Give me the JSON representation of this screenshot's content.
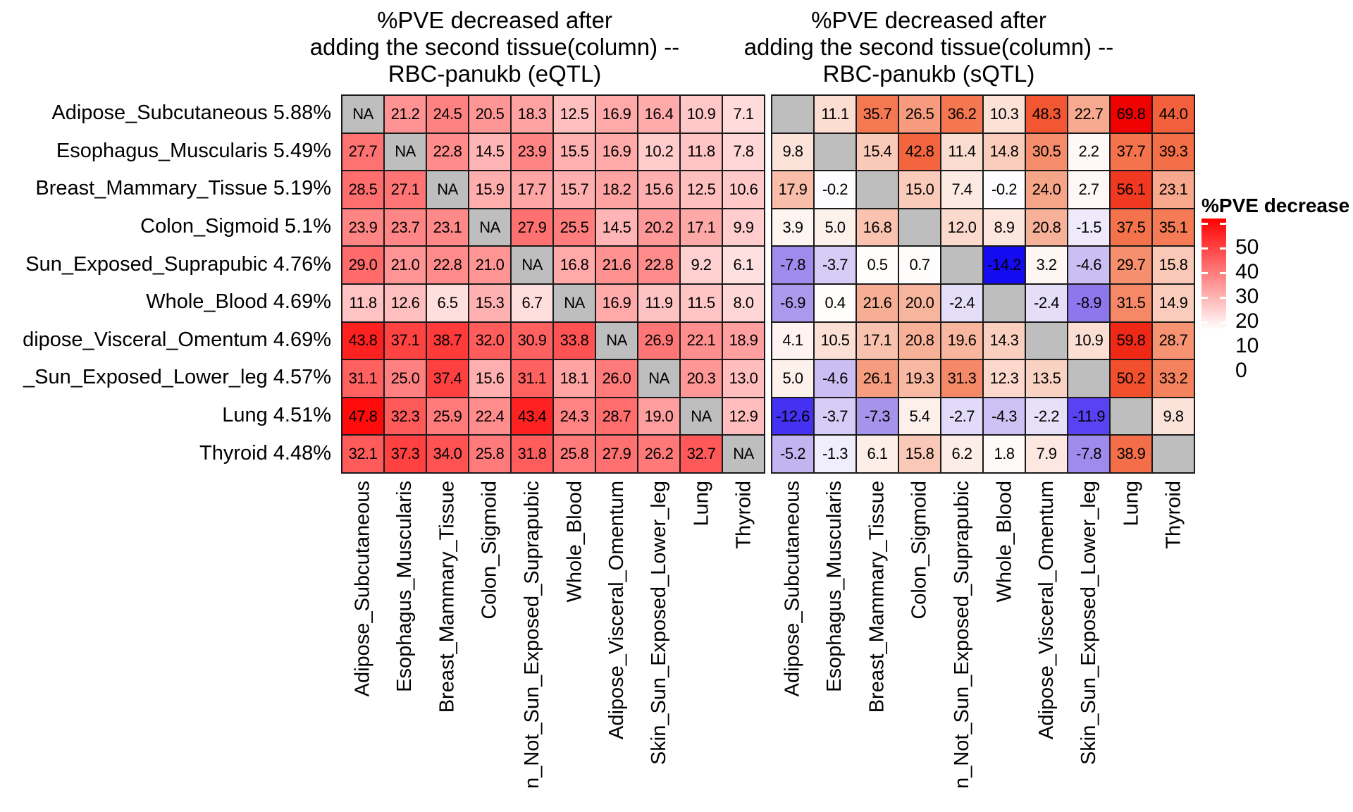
{
  "titles": {
    "left": "%PVE decreased after\nadding the second tissue(column) --\nRBC-panukb (eQTL)",
    "right": "%PVE decreased after\nadding the second tissue(column) --\nRBC-panukb (sQTL)"
  },
  "legend": {
    "title": "%PVE decrease",
    "tick_labels": [
      "50",
      "40",
      "30",
      "20",
      "10",
      "0"
    ]
  },
  "colors": {
    "na_cell": "#BEBEBE",
    "grid_line": "#1A1A1A",
    "background": "#FFFFFF"
  },
  "row_labels": [
    "Adipose_Subcutaneous 5.88%",
    "Esophagus_Muscularis 5.49%",
    "Breast_Mammary_Tissue 5.19%",
    "Colon_Sigmoid 5.1%",
    "Sun_Exposed_Suprapubic 4.76%",
    "Whole_Blood 4.69%",
    "dipose_Visceral_Omentum 4.69%",
    "_Sun_Exposed_Lower_leg 4.57%",
    "Lung 4.51%",
    "Thyroid 4.48%"
  ],
  "col_labels": [
    "Adipose_Subcutaneous",
    "Esophagus_Muscularis",
    "Breast_Mammary_Tissue",
    "Colon_Sigmoid",
    "n_Not_Sun_Exposed_Suprapubic",
    "Whole_Blood",
    "Adipose_Visceral_Omentum",
    "Skin_Sun_Exposed_Lower_leg",
    "Lung",
    "Thyroid"
  ],
  "chart_data": [
    {
      "type": "heatmap",
      "name": "eQTL",
      "title": "%PVE decreased after adding the second tissue(column) -- RBC-panukb (eQTL)",
      "rows": [
        "Adipose_Subcutaneous 5.88%",
        "Esophagus_Muscularis 5.49%",
        "Breast_Mammary_Tissue 5.19%",
        "Colon_Sigmoid 5.1%",
        "Sun_Exposed_Suprapubic 4.76%",
        "Whole_Blood 4.69%",
        "dipose_Visceral_Omentum 4.69%",
        "_Sun_Exposed_Lower_leg 4.57%",
        "Lung 4.51%",
        "Thyroid 4.48%"
      ],
      "columns": [
        "Adipose_Subcutaneous",
        "Esophagus_Muscularis",
        "Breast_Mammary_Tissue",
        "Colon_Sigmoid",
        "n_Not_Sun_Exposed_Suprapubic",
        "Whole_Blood",
        "Adipose_Visceral_Omentum",
        "Skin_Sun_Exposed_Lower_leg",
        "Lung",
        "Thyroid"
      ],
      "na_label": "NA",
      "values": [
        [
          null,
          21.2,
          24.5,
          20.5,
          18.3,
          12.5,
          16.9,
          16.4,
          10.9,
          7.1
        ],
        [
          27.7,
          null,
          22.8,
          14.5,
          23.9,
          15.5,
          16.9,
          10.2,
          11.8,
          7.8
        ],
        [
          28.5,
          27.1,
          null,
          15.9,
          17.7,
          15.7,
          18.2,
          15.6,
          12.5,
          10.6
        ],
        [
          23.9,
          23.7,
          23.1,
          null,
          27.9,
          25.5,
          14.5,
          20.2,
          17.1,
          9.9
        ],
        [
          29.0,
          21.0,
          22.8,
          21.0,
          null,
          16.8,
          21.6,
          22.8,
          9.2,
          6.1
        ],
        [
          11.8,
          12.6,
          6.5,
          15.3,
          6.7,
          null,
          16.9,
          11.9,
          11.5,
          8.0
        ],
        [
          43.8,
          37.1,
          38.7,
          32.0,
          30.9,
          33.8,
          null,
          26.9,
          22.1,
          18.9
        ],
        [
          31.1,
          25.0,
          37.4,
          15.6,
          31.1,
          18.1,
          26.0,
          null,
          20.3,
          13.0
        ],
        [
          47.8,
          32.3,
          25.9,
          22.4,
          43.4,
          24.3,
          28.7,
          19.0,
          null,
          12.9
        ],
        [
          32.1,
          37.3,
          34.0,
          25.8,
          31.8,
          25.8,
          27.9,
          26.2,
          32.7,
          null
        ]
      ],
      "color_scale": {
        "positive_max": 50,
        "negative_min": -15,
        "positive_stops": [
          [
            0,
            "#FFFFFF"
          ],
          [
            1,
            "#FF0000"
          ]
        ],
        "negative_stops": [
          [
            0,
            "#FFFFFF"
          ],
          [
            0.25,
            "#D5CBF5"
          ],
          [
            0.52,
            "#9F8BEB"
          ],
          [
            0.79,
            "#5A43F2"
          ],
          [
            0.95,
            "#140AF0"
          ],
          [
            1,
            "#0000EE"
          ]
        ]
      }
    },
    {
      "type": "heatmap",
      "name": "sQTL",
      "title": "%PVE decreased after adding the second tissue(column) -- RBC-panukb (sQTL)",
      "rows": [
        "Adipose_Subcutaneous 5.88%",
        "Esophagus_Muscularis 5.49%",
        "Breast_Mammary_Tissue 5.19%",
        "Colon_Sigmoid 5.1%",
        "Sun_Exposed_Suprapubic 4.76%",
        "Whole_Blood 4.69%",
        "dipose_Visceral_Omentum 4.69%",
        "_Sun_Exposed_Lower_leg 4.57%",
        "Lung 4.51%",
        "Thyroid 4.48%"
      ],
      "columns": [
        "Adipose_Subcutaneous",
        "Esophagus_Muscularis",
        "Breast_Mammary_Tissue",
        "Colon_Sigmoid",
        "n_Not_Sun_Exposed_Suprapubic",
        "Whole_Blood",
        "Adipose_Visceral_Omentum",
        "Skin_Sun_Exposed_Lower_leg",
        "Lung",
        "Thyroid"
      ],
      "na_label": "",
      "values": [
        [
          null,
          11.1,
          35.7,
          26.5,
          36.2,
          10.3,
          48.3,
          22.7,
          69.8,
          44.0
        ],
        [
          9.8,
          null,
          15.4,
          42.8,
          11.4,
          14.8,
          30.5,
          2.2,
          37.7,
          39.3
        ],
        [
          17.9,
          -0.2,
          null,
          15.0,
          7.4,
          -0.2,
          24.0,
          2.7,
          56.1,
          23.1
        ],
        [
          3.9,
          5.0,
          16.8,
          null,
          12.0,
          8.9,
          20.8,
          -1.5,
          37.5,
          35.1
        ],
        [
          -7.8,
          -3.7,
          0.5,
          0.7,
          null,
          -14.2,
          3.2,
          -4.6,
          29.7,
          15.8
        ],
        [
          -6.9,
          0.4,
          21.6,
          20.0,
          -2.4,
          null,
          -2.4,
          -8.9,
          31.5,
          14.9
        ],
        [
          4.1,
          10.5,
          17.1,
          20.8,
          19.6,
          14.3,
          null,
          10.9,
          59.8,
          28.7
        ],
        [
          5.0,
          -4.6,
          26.1,
          19.3,
          31.3,
          12.3,
          13.5,
          null,
          50.2,
          33.2
        ],
        [
          -12.6,
          -3.7,
          -7.3,
          5.4,
          -2.7,
          -4.3,
          -2.2,
          -11.9,
          null,
          9.8
        ],
        [
          -5.2,
          -1.3,
          6.1,
          15.8,
          6.2,
          1.8,
          7.9,
          -7.8,
          38.9,
          null
        ]
      ],
      "color_scale": {
        "positive_max": 70,
        "negative_min": -15,
        "positive_stops": [
          [
            0,
            "#FFFFFF"
          ],
          [
            0.14,
            "#FCE3DA"
          ],
          [
            0.3,
            "#F7B097"
          ],
          [
            0.52,
            "#F4764F"
          ],
          [
            0.7,
            "#F25430"
          ],
          [
            1,
            "#EE0000"
          ]
        ],
        "negative_stops": [
          [
            0,
            "#FFFFFF"
          ],
          [
            0.25,
            "#D5CBF5"
          ],
          [
            0.52,
            "#9F8BEB"
          ],
          [
            0.79,
            "#5A43F2"
          ],
          [
            0.95,
            "#140AF0"
          ],
          [
            1,
            "#0000EE"
          ]
        ]
      }
    }
  ]
}
